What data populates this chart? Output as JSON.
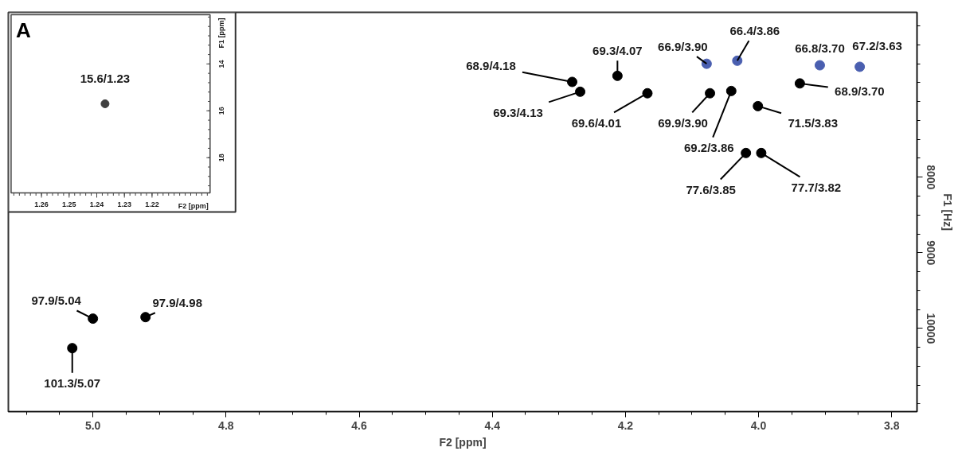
{
  "chart_data": [
    {
      "type": "scatter",
      "xlabel": "F2 [ppm]",
      "ylabel": "F1 [Hz]",
      "xlim": [
        5.127,
        3.762
      ],
      "ylim": [
        11100,
        5820
      ],
      "xticks": [
        {
          "value": 5.0,
          "label": "5.0"
        },
        4.8,
        4.6,
        4.4,
        4.2,
        {
          "value": 4.0,
          "label": "4.0"
        },
        3.8
      ],
      "yticks": [
        8000,
        9000,
        10000
      ],
      "marker": "circle",
      "series": [
        {
          "color": "#000000",
          "x": [
            5.031,
            5.0,
            4.921,
            4.28,
            4.268,
            4.212,
            4.167,
            4.073,
            3.938,
            4.001,
            4.041,
            4.019,
            3.996
          ],
          "values": [
            10260,
            9870,
            9850,
            6740,
            6870,
            6660,
            6890,
            6890,
            6760,
            7060,
            6860,
            7680,
            7680
          ]
        },
        {
          "color": "#4a5fb0",
          "x": [
            4.078,
            4.032,
            3.908,
            3.848
          ],
          "values": [
            6500,
            6460,
            6520,
            6540
          ]
        }
      ],
      "annotations": [
        {
          "text": "101.3/5.07",
          "x": 5.031,
          "y": 10260
        },
        {
          "text": "97.9/5.04",
          "x": 5.0,
          "y": 9870
        },
        {
          "text": "97.9/4.98",
          "x": 4.921,
          "y": 9850
        },
        {
          "text": "68.9/4.18",
          "x": 4.28,
          "y": 6740
        },
        {
          "text": "69.3/4.13",
          "x": 4.268,
          "y": 6870
        },
        {
          "text": "69.3/4.07",
          "x": 4.212,
          "y": 6660
        },
        {
          "text": "69.6/4.01",
          "x": 4.167,
          "y": 6890
        },
        {
          "text": "69.9/3.90",
          "x": 4.073,
          "y": 6890
        },
        {
          "text": "68.9/3.70",
          "x": 3.938,
          "y": 6760
        },
        {
          "text": "71.5/3.83",
          "x": 4.001,
          "y": 7060
        },
        {
          "text": "69.2/3.86",
          "x": 4.041,
          "y": 6860
        },
        {
          "text": "77.6/3.85",
          "x": 4.019,
          "y": 7680
        },
        {
          "text": "77.7/3.82",
          "x": 3.996,
          "y": 7680
        },
        {
          "text": "66.9/3.90",
          "x": 4.078,
          "y": 6500
        },
        {
          "text": "66.4/3.86",
          "x": 4.032,
          "y": 6460
        },
        {
          "text": "66.8/3.70",
          "x": 3.908,
          "y": 6520
        },
        {
          "text": "67.2/3.63",
          "x": 3.848,
          "y": 6540
        }
      ]
    },
    {
      "type": "scatter",
      "xlabel": "F2 [ppm]",
      "ylabel": "F1 [ppm]",
      "xlim": [
        1.271,
        1.199
      ],
      "ylim": [
        19.5,
        11.9
      ],
      "xticks": [
        1.26,
        1.25,
        1.24,
        1.23,
        1.22
      ],
      "yticks": [
        14,
        16,
        18
      ],
      "marker": "circle",
      "series": [
        {
          "color": "#404040",
          "x": [
            1.237
          ],
          "values": [
            15.7
          ]
        }
      ],
      "annotations": [
        "A",
        {
          "text": "15.6/1.23",
          "x": 1.237,
          "y": 15.7
        }
      ]
    }
  ]
}
